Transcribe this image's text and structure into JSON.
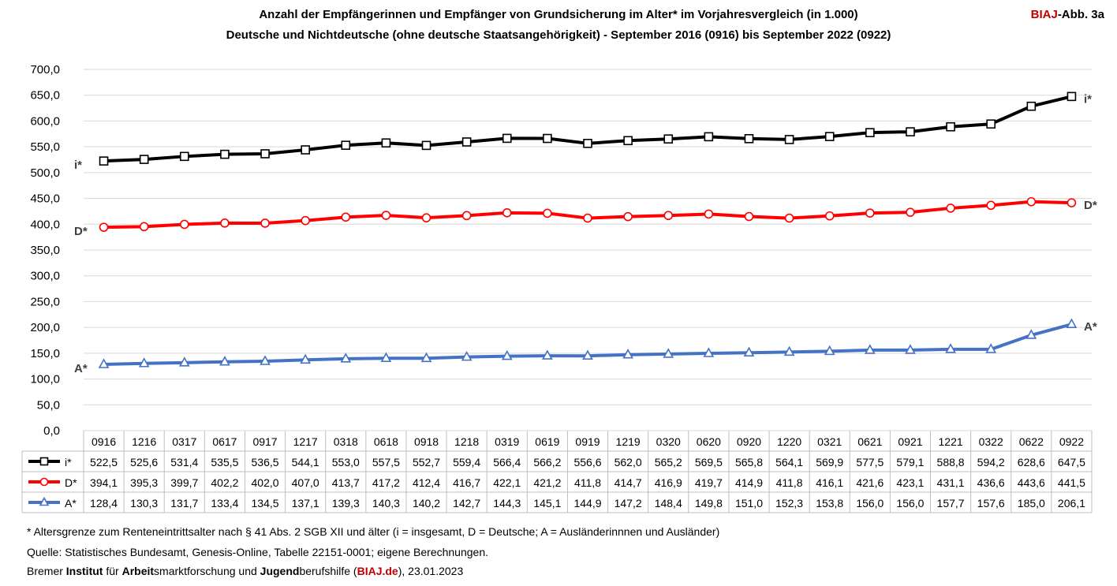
{
  "header": {
    "title_line1": "Anzahl der Empfängerinnen und Empfänger von Grundsicherung im Alter* im Vorjahresvergleich (in 1.000)",
    "title_line2": "Deutsche und Nichtdeutsche (ohne deutsche Staatsangehörigkeit) - September 2016 (0916) bis September 2022 (0922)",
    "badge_red": "BIAJ",
    "badge_rest": "-Abb. 3a"
  },
  "chart_data": {
    "type": "line",
    "ylim": [
      0,
      700
    ],
    "ytick_step": 50,
    "ytick_labels": [
      "0,0",
      "50,0",
      "100,0",
      "150,0",
      "200,0",
      "250,0",
      "300,0",
      "350,0",
      "400,0",
      "450,0",
      "500,0",
      "550,0",
      "600,0",
      "650,0",
      "700,0"
    ],
    "grid": true,
    "categories": [
      "0916",
      "1216",
      "0317",
      "0617",
      "0917",
      "1217",
      "0318",
      "0618",
      "0918",
      "1218",
      "0319",
      "0619",
      "0919",
      "1219",
      "0320",
      "0620",
      "0920",
      "1220",
      "0321",
      "0621",
      "0921",
      "1221",
      "0322",
      "0622",
      "0922"
    ],
    "series": [
      {
        "name": "i*",
        "color": "#000000",
        "marker": "square",
        "values": [
          522.5,
          525.6,
          531.4,
          535.5,
          536.5,
          544.1,
          553.0,
          557.5,
          552.7,
          559.4,
          566.4,
          566.2,
          556.6,
          562.0,
          565.2,
          569.5,
          565.8,
          564.1,
          569.9,
          577.5,
          579.1,
          588.8,
          594.2,
          628.6,
          647.5
        ],
        "labels": [
          "522,5",
          "525,6",
          "531,4",
          "535,5",
          "536,5",
          "544,1",
          "553,0",
          "557,5",
          "552,7",
          "559,4",
          "566,4",
          "566,2",
          "556,6",
          "562,0",
          "565,2",
          "569,5",
          "565,8",
          "564,1",
          "569,9",
          "577,5",
          "579,1",
          "588,8",
          "594,2",
          "628,6",
          "647,5"
        ]
      },
      {
        "name": "D*",
        "color": "#ff0000",
        "marker": "circle",
        "values": [
          394.1,
          395.3,
          399.7,
          402.2,
          402.0,
          407.0,
          413.7,
          417.2,
          412.4,
          416.7,
          422.1,
          421.2,
          411.8,
          414.7,
          416.9,
          419.7,
          414.9,
          411.8,
          416.1,
          421.6,
          423.1,
          431.1,
          436.6,
          443.6,
          441.5
        ],
        "labels": [
          "394,1",
          "395,3",
          "399,7",
          "402,2",
          "402,0",
          "407,0",
          "413,7",
          "417,2",
          "412,4",
          "416,7",
          "422,1",
          "421,2",
          "411,8",
          "414,7",
          "416,9",
          "419,7",
          "414,9",
          "411,8",
          "416,1",
          "421,6",
          "423,1",
          "431,1",
          "436,6",
          "443,6",
          "441,5"
        ]
      },
      {
        "name": "A*",
        "color": "#4472c4",
        "marker": "triangle",
        "values": [
          128.4,
          130.3,
          131.7,
          133.4,
          134.5,
          137.1,
          139.3,
          140.3,
          140.2,
          142.7,
          144.3,
          145.1,
          144.9,
          147.2,
          148.4,
          149.8,
          151.0,
          152.3,
          153.8,
          156.0,
          156.0,
          157.7,
          157.6,
          185.0,
          206.1
        ],
        "labels": [
          "128,4",
          "130,3",
          "131,7",
          "133,4",
          "134,5",
          "137,1",
          "139,3",
          "140,3",
          "140,2",
          "142,7",
          "144,3",
          "145,1",
          "144,9",
          "147,2",
          "148,4",
          "149,8",
          "151,0",
          "152,3",
          "153,8",
          "156,0",
          "156,0",
          "157,7",
          "157,6",
          "185,0",
          "206,1"
        ]
      }
    ]
  },
  "footer": {
    "note": "* Altersgrenze zum Renteneintrittsalter nach § 41 Abs. 2 SGB XII und älter (i = insgesamt, D =  Deutsche; A = Ausländerinnnen und Ausländer)",
    "source": "Quelle: Statistisches Bundesamt, Genesis-Online, Tabelle 22151-0001; eigene Berechnungen.",
    "credit_1": "Bremer ",
    "credit_2": "Institut",
    "credit_3": " für ",
    "credit_4": "Arbeit",
    "credit_5": "smarktforschung und ",
    "credit_6": "Jugend",
    "credit_7": "berufshilfe (",
    "credit_8": "BIAJ.de",
    "credit_9": "), 23.01.2023"
  }
}
